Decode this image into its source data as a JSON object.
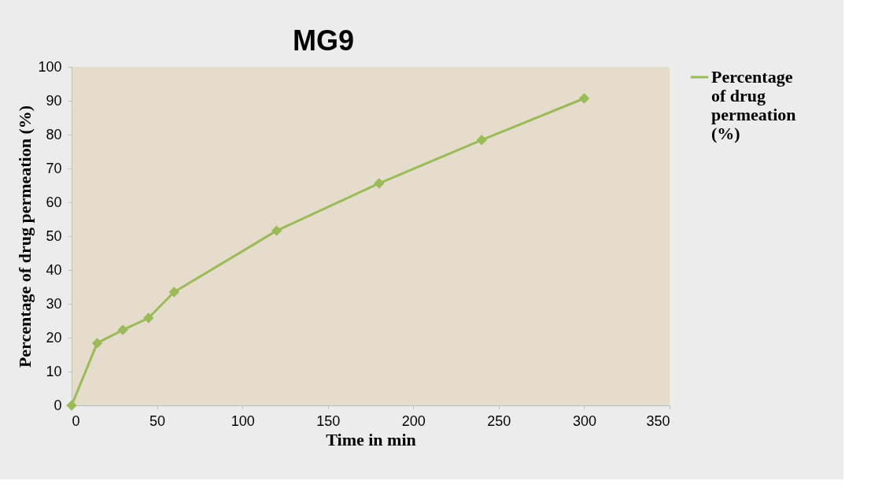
{
  "chart_data": {
    "type": "line",
    "title": "MG9",
    "xlabel": "Time in min",
    "ylabel": "Percentage of drug permeation (%)",
    "x": [
      0,
      15,
      30,
      45,
      60,
      120,
      180,
      240,
      300
    ],
    "series": [
      {
        "name": "Percentage of drug permeation (%)",
        "color": "#9bbb59",
        "values": [
          0,
          18.4,
          22.3,
          25.8,
          33.5,
          51.6,
          65.6,
          78.4,
          90.7
        ]
      }
    ],
    "xlim": [
      0,
      350
    ],
    "xticks": [
      0,
      50,
      100,
      150,
      200,
      250,
      300,
      350
    ],
    "ylim": [
      0,
      100
    ],
    "yticks": [
      0,
      10,
      20,
      30,
      40,
      50,
      60,
      70,
      80,
      90,
      100
    ],
    "grid": false,
    "legend": "right",
    "marker": "diamond",
    "line_style": "solid"
  }
}
